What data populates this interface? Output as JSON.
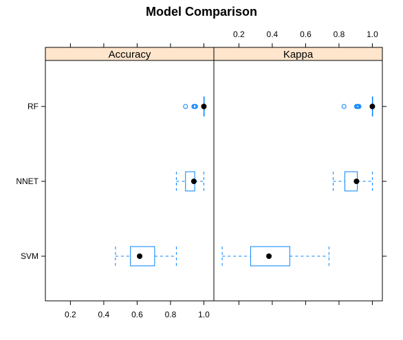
{
  "chart_data": {
    "type": "box",
    "title": "Model Comparison",
    "categories": [
      "SVM",
      "NNET",
      "RF"
    ],
    "x_ticks": [
      "0.2",
      "0.4",
      "0.6",
      "0.8",
      "1.0"
    ],
    "colors": {
      "box": "#0080ff",
      "median": "#000000",
      "strip": "#ffe5cc",
      "frame": "#000000"
    },
    "panels": [
      {
        "name": "Accuracy",
        "xlim": [
          0.05,
          1.06
        ],
        "boxes": [
          {
            "category": "SVM",
            "whisker_low": 0.47,
            "q1": 0.56,
            "median": 0.615,
            "q3": 0.705,
            "whisker_high": 0.835,
            "outliers": []
          },
          {
            "category": "NNET",
            "whisker_low": 0.835,
            "q1": 0.89,
            "median": 0.94,
            "q3": 0.945,
            "whisker_high": 1.0,
            "outliers": []
          },
          {
            "category": "RF",
            "whisker_low": 1.0,
            "q1": 1.0,
            "median": 1.0,
            "q3": 1.0,
            "whisker_high": 1.0,
            "outliers": [
              0.89,
              0.94,
              0.945,
              0.95
            ]
          }
        ]
      },
      {
        "name": "Kappa",
        "xlim": [
          0.05,
          1.06
        ],
        "boxes": [
          {
            "category": "SVM",
            "whisker_low": 0.1,
            "q1": 0.27,
            "median": 0.38,
            "q3": 0.505,
            "whisker_high": 0.74,
            "outliers": []
          },
          {
            "category": "NNET",
            "whisker_low": 0.765,
            "q1": 0.835,
            "median": 0.905,
            "q3": 0.91,
            "whisker_high": 1.0,
            "outliers": []
          },
          {
            "category": "RF",
            "whisker_low": 1.0,
            "q1": 1.0,
            "median": 1.0,
            "q3": 1.0,
            "whisker_high": 1.0,
            "outliers": [
              0.83,
              0.905,
              0.91,
              0.915,
              0.92
            ]
          }
        ]
      }
    ]
  }
}
